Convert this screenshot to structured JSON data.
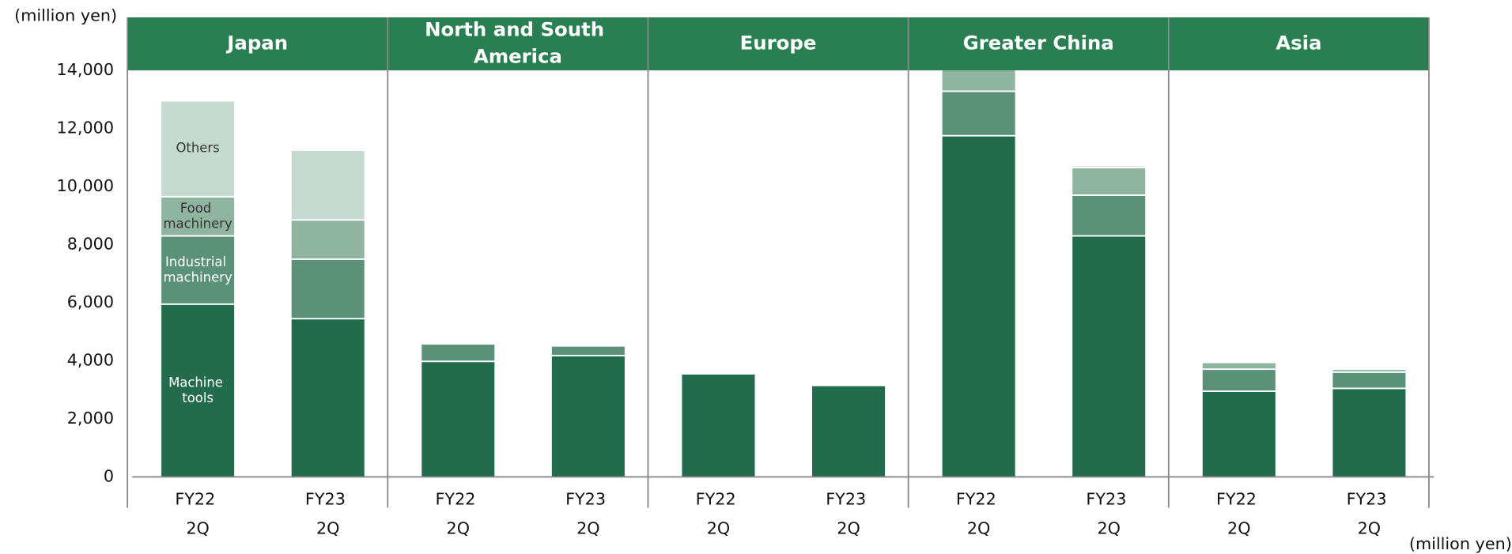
{
  "chart_data": {
    "type": "stacked_bar",
    "ylabel": "(million yen)",
    "unit_note": "(million yen)",
    "groups": [
      "Japan",
      "North and South America",
      "Europe",
      "Greater China",
      "Asia"
    ],
    "categories": [
      "FY22 2Q",
      "FY23 2Q",
      "FY22 2Q",
      "FY23 2Q",
      "FY22 2Q",
      "FY23 2Q",
      "FY22 2Q",
      "FY23 2Q",
      "FY22 2Q",
      "FY23 2Q"
    ],
    "series": [
      {
        "name": "Machine tools",
        "color": "#236b4d",
        "values": [
          5950,
          5450,
          3980,
          4180,
          3550,
          3150,
          11750,
          8300,
          2950,
          3050
        ]
      },
      {
        "name": "Industrial machinery",
        "color": "#5a9178",
        "values": [
          2350,
          2050,
          600,
          330,
          0,
          0,
          1530,
          1400,
          760,
          560
        ]
      },
      {
        "name": "Food machinery",
        "color": "#8fb5a0",
        "values": [
          1350,
          1350,
          0,
          0,
          0,
          0,
          750,
          950,
          230,
          100
        ]
      },
      {
        "name": "Others",
        "color": "#c5dbd1",
        "values": [
          3300,
          2400,
          0,
          0,
          0,
          0,
          0,
          70,
          0,
          0
        ]
      }
    ],
    "ylim": [
      0,
      14000
    ],
    "yticks": [
      0,
      {
        "value": 2000,
        "label": "2,000"
      },
      {
        "value": 4000,
        "label": "4,000"
      },
      {
        "value": 6000,
        "label": "6,000"
      },
      {
        "value": 8000,
        "label": "8,000"
      },
      {
        "value": 10000,
        "label": "10,000"
      },
      {
        "value": 12000,
        "label": "12,000"
      },
      {
        "value": 14000,
        "label": "14,000"
      }
    ],
    "header_color": "#2a7f52"
  }
}
